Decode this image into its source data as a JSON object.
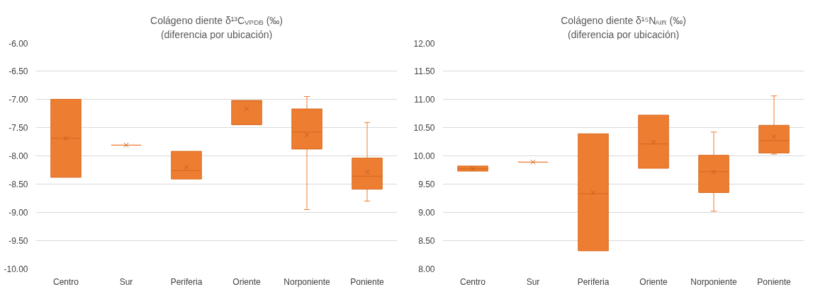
{
  "chart_data": [
    {
      "type": "box",
      "title": "Colágeno diente δ¹³C$_{VPDB}$ (‰)",
      "subtitle": "(diferencia por ubicación)",
      "categories": [
        "Centro",
        "Sur",
        "Periferia",
        "Oriente",
        "Norponiente",
        "Poniente"
      ],
      "color": "#ed7d31",
      "grid": "y",
      "legend": false,
      "ylim": [
        -10,
        -6
      ],
      "yticks": [
        {
          "value": -10,
          "label": "-10.00"
        },
        {
          "value": -9.5,
          "label": "-9.50"
        },
        {
          "value": -9,
          "label": "-9.00"
        },
        {
          "value": -8.5,
          "label": "-8.50"
        },
        {
          "value": -8,
          "label": "-8.00"
        },
        {
          "value": -7.5,
          "label": "-7.50"
        },
        {
          "value": -7,
          "label": "-7.00"
        },
        {
          "value": -6.5,
          "label": "-6.50"
        },
        {
          "value": -6,
          "label": "-6.00"
        }
      ],
      "boxes": [
        {
          "low": -8.38,
          "q1": -8.38,
          "median": -7.69,
          "q3": -7.0,
          "high": -7.0,
          "mean": -7.69
        },
        {
          "low": -7.81,
          "q1": -7.81,
          "median": -7.81,
          "q3": -7.81,
          "high": -7.81,
          "mean": -7.81
        },
        {
          "low": -8.41,
          "q1": -8.41,
          "median": -8.26,
          "q3": -7.92,
          "high": -7.92,
          "mean": -8.2
        },
        {
          "low": -7.45,
          "q1": -7.45,
          "median": -7.03,
          "q3": -7.02,
          "high": -7.02,
          "mean": -7.17
        },
        {
          "low": -8.95,
          "q1": -7.88,
          "median": -7.58,
          "q3": -7.17,
          "high": -6.95,
          "mean": -7.63
        },
        {
          "low": -8.8,
          "q1": -8.59,
          "median": -8.36,
          "q3": -8.04,
          "high": -7.41,
          "mean": -8.29
        }
      ]
    },
    {
      "type": "box",
      "title": "Colágeno diente δ¹⁵N$_{AIR}$ (‰)",
      "subtitle": "(diferencia por ubicación)",
      "categories": [
        "Centro",
        "Sur",
        "Periferia",
        "Oriente",
        "Norponiente",
        "Poniente"
      ],
      "color": "#ed7d31",
      "grid": "y",
      "legend": false,
      "ylim": [
        8,
        12
      ],
      "yticks": [
        {
          "value": 8,
          "label": "8.00"
        },
        {
          "value": 8.5,
          "label": "8.50"
        },
        {
          "value": 9,
          "label": "9.00"
        },
        {
          "value": 9.5,
          "label": "9.50"
        },
        {
          "value": 10,
          "label": "10.00"
        },
        {
          "value": 10.5,
          "label": "10.50"
        },
        {
          "value": 11,
          "label": "11.00"
        },
        {
          "value": 11.5,
          "label": "11.50"
        },
        {
          "value": 12,
          "label": "12.00"
        }
      ],
      "boxes": [
        {
          "low": 9.73,
          "q1": 9.73,
          "median": 9.77,
          "q3": 9.82,
          "high": 9.82,
          "mean": 9.77
        },
        {
          "low": 9.89,
          "q1": 9.89,
          "median": 9.89,
          "q3": 9.89,
          "high": 9.89,
          "mean": 9.89
        },
        {
          "low": 8.32,
          "q1": 8.32,
          "median": 9.33,
          "q3": 10.39,
          "high": 10.39,
          "mean": 9.35
        },
        {
          "low": 9.78,
          "q1": 9.78,
          "median": 10.21,
          "q3": 10.72,
          "high": 10.72,
          "mean": 10.24
        },
        {
          "low": 9.02,
          "q1": 9.35,
          "median": 9.72,
          "q3": 10.01,
          "high": 10.42,
          "mean": 9.71
        },
        {
          "low": 10.03,
          "q1": 10.05,
          "median": 10.27,
          "q3": 10.54,
          "high": 11.06,
          "mean": 10.34
        }
      ]
    }
  ]
}
